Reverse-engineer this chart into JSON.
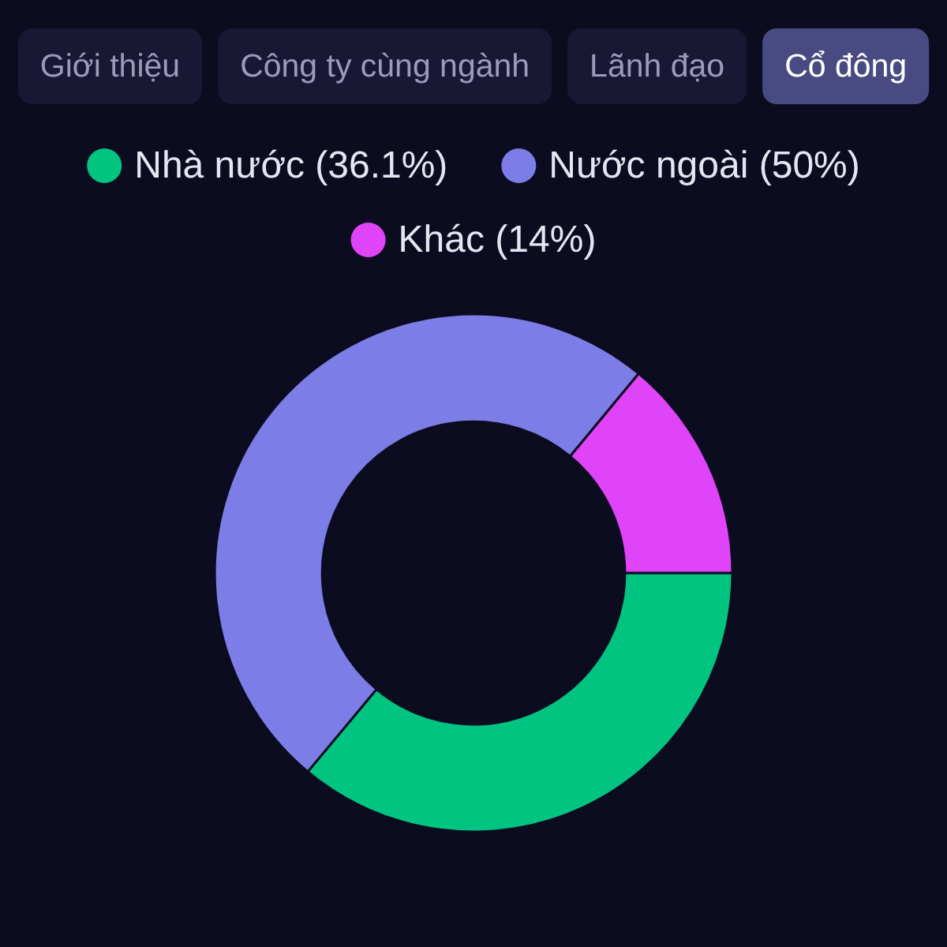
{
  "chart_data": {
    "type": "donut",
    "categories": [
      "Nhà nước (36.1%)",
      "Nước ngoài (50%)",
      "Khác (14%)"
    ],
    "values": [
      36.1,
      50,
      14
    ],
    "colors": [
      "#00c480",
      "#7d7de8",
      "#e044f8"
    ],
    "legend": "top",
    "annotations": [
      "Giới thiệu",
      "Công ty cùng ngành",
      "Lãnh đạo",
      "Cổ đông"
    ]
  }
}
